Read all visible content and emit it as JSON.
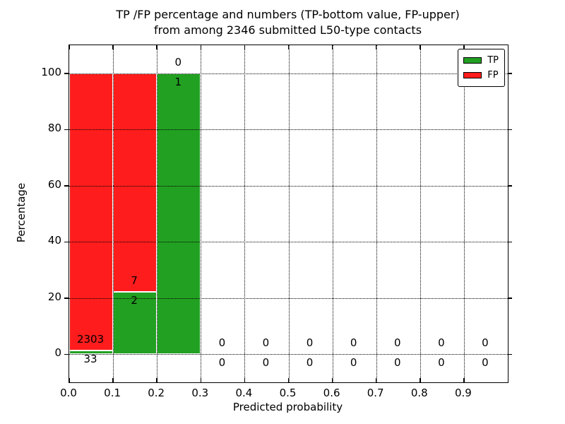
{
  "figure": {
    "title_line1": "TP /FP percentage and numbers (TP-bottom value, FP-upper)",
    "title_line2": "from among 2346 submitted L50-type contacts"
  },
  "chart_data": {
    "type": "bar",
    "stacked": true,
    "title": "TP /FP percentage and numbers (TP-bottom value, FP-upper) from among 2346 submitted L50-type contacts",
    "xlabel": "Predicted probability",
    "ylabel": "Percentage",
    "xlim": [
      0.0,
      1.0
    ],
    "ylim": [
      -10,
      110
    ],
    "xtick_values": [
      0.0,
      0.1,
      0.2,
      0.3,
      0.4,
      0.5,
      0.6,
      0.7,
      0.8,
      0.9
    ],
    "xtick_labels": [
      "0.0",
      "0.1",
      "0.2",
      "0.3",
      "0.4",
      "0.5",
      "0.6",
      "0.7",
      "0.8",
      "0.9"
    ],
    "ytick_values": [
      0,
      20,
      40,
      60,
      80,
      100
    ],
    "ytick_labels": [
      "0",
      "20",
      "40",
      "60",
      "80",
      "100"
    ],
    "grid": "dotted",
    "grid_above_bars": true,
    "total_submitted": 2346,
    "legend": {
      "position": "upper-right",
      "entries": [
        {
          "name": "TP",
          "color": "#22A022"
        },
        {
          "name": "FP",
          "color": "#FF1C1C"
        }
      ]
    },
    "colors": {
      "tp": "#22A022",
      "fp": "#FF1C1C",
      "bar_edge": "#ffffff",
      "text": "#000000"
    },
    "bins": [
      {
        "x_start": 0.0,
        "x_end": 0.1,
        "tp_count": 33,
        "fp_count": 2303,
        "tp_pct": 1.413,
        "fp_pct": 98.587
      },
      {
        "x_start": 0.1,
        "x_end": 0.2,
        "tp_count": 2,
        "fp_count": 7,
        "tp_pct": 22.222,
        "fp_pct": 77.778
      },
      {
        "x_start": 0.2,
        "x_end": 0.3,
        "tp_count": 1,
        "fp_count": 0,
        "tp_pct": 100.0,
        "fp_pct": 0.0
      },
      {
        "x_start": 0.3,
        "x_end": 0.4,
        "tp_count": 0,
        "fp_count": 0,
        "tp_pct": 0.0,
        "fp_pct": 0.0
      },
      {
        "x_start": 0.4,
        "x_end": 0.5,
        "tp_count": 0,
        "fp_count": 0,
        "tp_pct": 0.0,
        "fp_pct": 0.0
      },
      {
        "x_start": 0.5,
        "x_end": 0.6,
        "tp_count": 0,
        "fp_count": 0,
        "tp_pct": 0.0,
        "fp_pct": 0.0
      },
      {
        "x_start": 0.6,
        "x_end": 0.7,
        "tp_count": 0,
        "fp_count": 0,
        "tp_pct": 0.0,
        "fp_pct": 0.0
      },
      {
        "x_start": 0.7,
        "x_end": 0.8,
        "tp_count": 0,
        "fp_count": 0,
        "tp_pct": 0.0,
        "fp_pct": 0.0
      },
      {
        "x_start": 0.8,
        "x_end": 0.9,
        "tp_count": 0,
        "fp_count": 0,
        "tp_pct": 0.0,
        "fp_pct": 0.0
      },
      {
        "x_start": 0.9,
        "x_end": 1.0,
        "tp_count": 0,
        "fp_count": 0,
        "tp_pct": 0.0,
        "fp_pct": 0.0
      }
    ],
    "count_label_offset_pct": 3.5
  }
}
